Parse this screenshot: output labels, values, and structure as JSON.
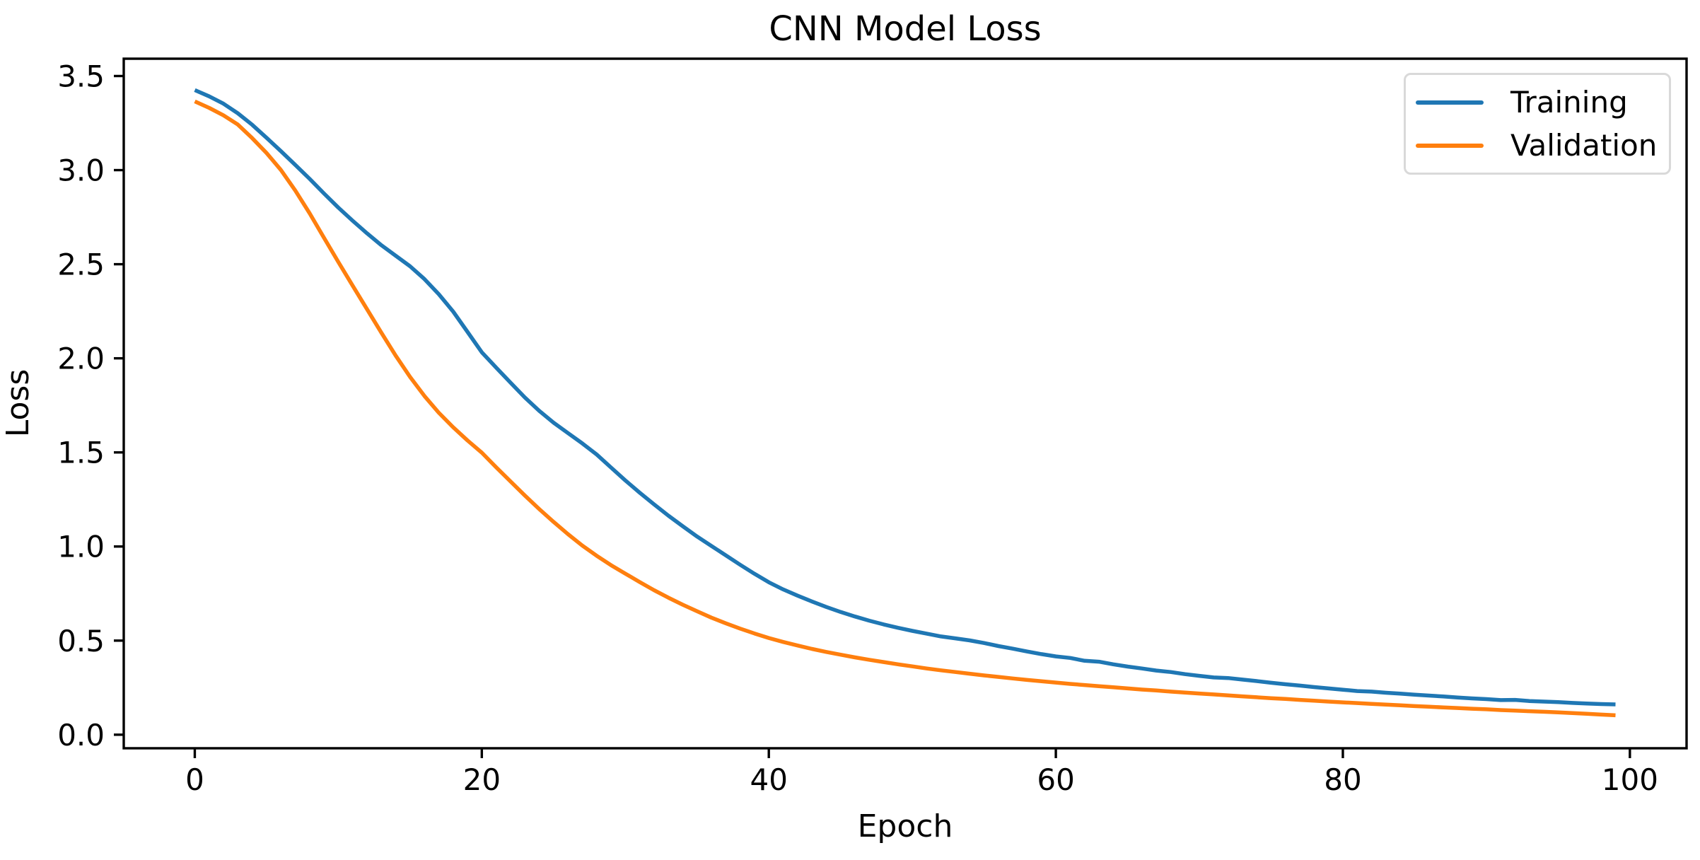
{
  "chart_data": {
    "type": "line",
    "title": "CNN Model Loss",
    "xlabel": "Epoch",
    "ylabel": "Loss",
    "xlim": [
      -4.95,
      103.95
    ],
    "ylim": [
      -0.072,
      3.592
    ],
    "x_ticks": [
      0,
      20,
      40,
      60,
      80,
      100
    ],
    "x_tick_labels": [
      "0",
      "20",
      "40",
      "60",
      "80",
      "100"
    ],
    "y_ticks": [
      0.0,
      0.5,
      1.0,
      1.5,
      2.0,
      2.5,
      3.0,
      3.5
    ],
    "y_tick_labels": [
      "0.0",
      "0.5",
      "1.0",
      "1.5",
      "2.0",
      "2.5",
      "3.0",
      "3.5"
    ],
    "grid": false,
    "legend": {
      "position": "upper right",
      "entries": [
        {
          "label": "Training",
          "color": "#1f77b4"
        },
        {
          "label": "Validation",
          "color": "#ff7f0e"
        }
      ]
    },
    "x": [
      0,
      1,
      2,
      3,
      4,
      5,
      6,
      7,
      8,
      9,
      10,
      11,
      12,
      13,
      14,
      15,
      16,
      17,
      18,
      19,
      20,
      21,
      22,
      23,
      24,
      25,
      26,
      27,
      28,
      29,
      30,
      31,
      32,
      33,
      34,
      35,
      36,
      37,
      38,
      39,
      40,
      41,
      42,
      43,
      44,
      45,
      46,
      47,
      48,
      49,
      50,
      51,
      52,
      53,
      54,
      55,
      56,
      57,
      58,
      59,
      60,
      61,
      62,
      63,
      64,
      65,
      66,
      67,
      68,
      69,
      70,
      71,
      72,
      73,
      74,
      75,
      76,
      77,
      78,
      79,
      80,
      81,
      82,
      83,
      84,
      85,
      86,
      87,
      88,
      89,
      90,
      91,
      92,
      93,
      94,
      95,
      96,
      97,
      98,
      99
    ],
    "series": [
      {
        "name": "Training",
        "color": "#1f77b4",
        "values": [
          3.425,
          3.392,
          3.353,
          3.302,
          3.241,
          3.172,
          3.101,
          3.028,
          2.954,
          2.876,
          2.801,
          2.731,
          2.664,
          2.601,
          2.545,
          2.489,
          2.421,
          2.341,
          2.249,
          2.141,
          2.032,
          1.951,
          1.871,
          1.792,
          1.721,
          1.658,
          1.603,
          1.548,
          1.489,
          1.42,
          1.351,
          1.286,
          1.224,
          1.164,
          1.108,
          1.053,
          1.003,
          0.953,
          0.903,
          0.855,
          0.81,
          0.772,
          0.739,
          0.708,
          0.679,
          0.652,
          0.628,
          0.606,
          0.586,
          0.568,
          0.552,
          0.537,
          0.522,
          0.512,
          0.501,
          0.487,
          0.471,
          0.457,
          0.442,
          0.428,
          0.416,
          0.408,
          0.393,
          0.388,
          0.374,
          0.362,
          0.352,
          0.341,
          0.333,
          0.322,
          0.313,
          0.304,
          0.301,
          0.293,
          0.285,
          0.276,
          0.268,
          0.261,
          0.253,
          0.246,
          0.239,
          0.232,
          0.229,
          0.223,
          0.218,
          0.213,
          0.208,
          0.203,
          0.198,
          0.193,
          0.189,
          0.184,
          0.185,
          0.179,
          0.176,
          0.173,
          0.169,
          0.166,
          0.163,
          0.161
        ]
      },
      {
        "name": "Validation",
        "color": "#ff7f0e",
        "values": [
          3.365,
          3.331,
          3.291,
          3.242,
          3.17,
          3.091,
          3.001,
          2.892,
          2.771,
          2.641,
          2.512,
          2.386,
          2.261,
          2.136,
          2.014,
          1.901,
          1.8,
          1.711,
          1.634,
          1.564,
          1.499,
          1.421,
          1.346,
          1.271,
          1.199,
          1.131,
          1.066,
          1.005,
          0.951,
          0.901,
          0.856,
          0.811,
          0.768,
          0.728,
          0.691,
          0.656,
          0.622,
          0.592,
          0.564,
          0.538,
          0.514,
          0.493,
          0.474,
          0.456,
          0.44,
          0.425,
          0.411,
          0.398,
          0.386,
          0.374,
          0.363,
          0.352,
          0.342,
          0.333,
          0.324,
          0.315,
          0.307,
          0.299,
          0.291,
          0.284,
          0.277,
          0.27,
          0.264,
          0.258,
          0.252,
          0.246,
          0.24,
          0.235,
          0.229,
          0.224,
          0.219,
          0.214,
          0.209,
          0.204,
          0.199,
          0.194,
          0.19,
          0.185,
          0.181,
          0.176,
          0.172,
          0.168,
          0.164,
          0.16,
          0.156,
          0.152,
          0.149,
          0.145,
          0.142,
          0.138,
          0.135,
          0.131,
          0.128,
          0.125,
          0.122,
          0.119,
          0.115,
          0.111,
          0.107,
          0.103
        ]
      }
    ]
  }
}
